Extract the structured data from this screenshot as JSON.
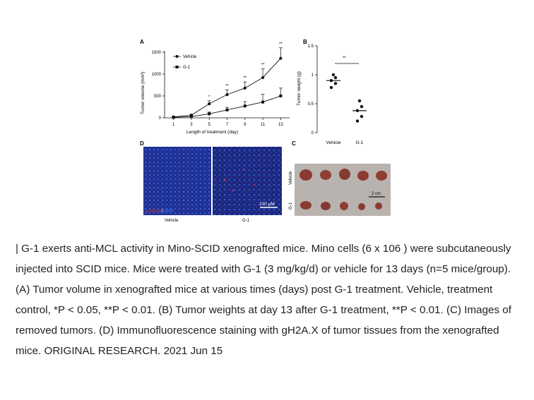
{
  "chart_data": [
    {
      "panel": "A",
      "type": "line",
      "xlabel": "Length of treatment (day)",
      "ylabel": "Tumor volume (mm³)",
      "x": [
        1,
        3,
        5,
        7,
        9,
        11,
        13
      ],
      "ylim": [
        0,
        1500
      ],
      "yticks": [
        0,
        500,
        1000,
        1500
      ],
      "xticks": [
        1,
        3,
        5,
        7,
        9,
        11,
        13
      ],
      "series": [
        {
          "name": "Vehicle",
          "marker": "circle",
          "values": [
            20,
            60,
            320,
            530,
            680,
            920,
            1360
          ],
          "errors": [
            10,
            20,
            70,
            110,
            140,
            200,
            240
          ]
        },
        {
          "name": "G-1",
          "marker": "square",
          "values": [
            10,
            30,
            90,
            180,
            270,
            360,
            500
          ],
          "errors": [
            8,
            15,
            40,
            60,
            100,
            180,
            180
          ]
        }
      ],
      "significance": [
        "",
        "",
        "*",
        "**",
        "**",
        "**",
        "**"
      ]
    },
    {
      "panel": "B",
      "type": "scatter",
      "ylabel": "Tumor weight (g)",
      "categories": [
        "Vehicle",
        "G-1"
      ],
      "ylim": [
        0,
        1.5
      ],
      "yticks": [
        0,
        0.5,
        1.0,
        1.5
      ],
      "points": [
        [
          1.0,
          0.95,
          0.9,
          0.85,
          0.78
        ],
        [
          0.55,
          0.45,
          0.38,
          0.28,
          0.2
        ]
      ],
      "means": [
        0.9,
        0.38
      ],
      "significance": "**"
    }
  ],
  "figure": {
    "labels": {
      "a": "A",
      "b": "B",
      "c": "C",
      "d": "D"
    },
    "d": {
      "stain_red": "γ-H2AX",
      "stain_slash": "/",
      "stain_blue": "DAPI",
      "scale": "100 μM",
      "label_left": "Vehicle",
      "label_right": "G-1"
    },
    "c": {
      "row1": "Vehicle",
      "row2": "G-1",
      "scale": "2 cm"
    },
    "colors": {
      "if_bg": "#1b2a8a",
      "tumor": "#8a3a30",
      "tray": "#b9b3b0"
    }
  },
  "caption": "| G-1 exerts anti-MCL activity in Mino-SCID xenografted mice. Mino cells (6 x 106 ) were subcutaneously injected into SCID mice. Mice were treated with G-1 (3 mg/kg/d) or vehicle for 13 days (n=5 mice/group). (A) Tumor volume in xenografted mice at various times (days) post G-1 treatment. Vehicle, treatment control, *P < 0.05, **P < 0.01. (B) Tumor weights at day 13 after G-1 treatment, **P < 0.01. (C) Images of removed tumors. (D) Immunofluorescence staining with gH2A.X of tumor tissues from the xenografted mice. ORIGINAL RESEARCH. 2021 Jun 15"
}
